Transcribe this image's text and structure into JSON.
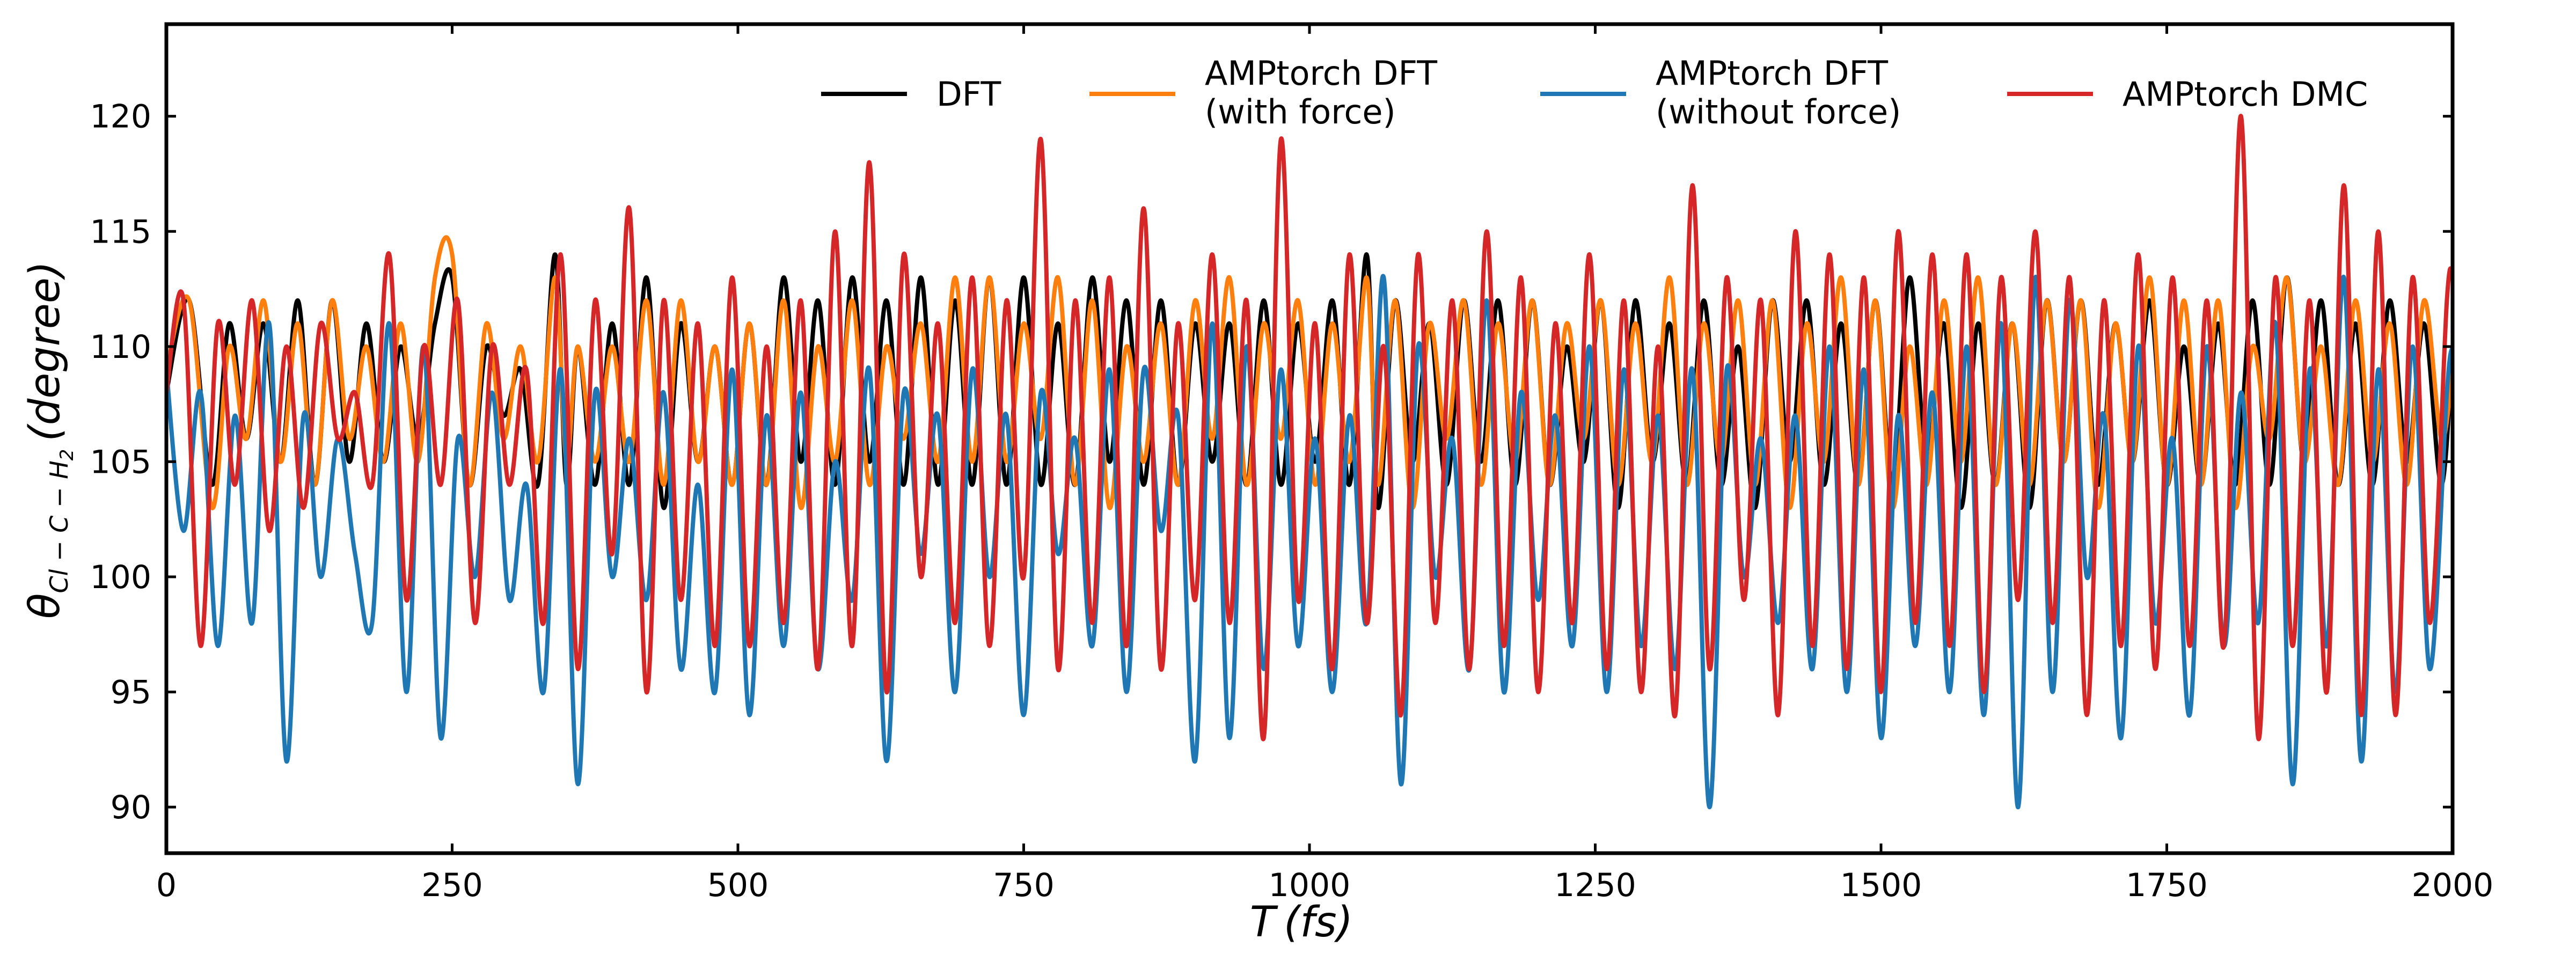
{
  "chart_data": {
    "type": "line",
    "xlabel": "T (fs)",
    "ylabel_main": "θ",
    "ylabel_sub": "Cl − C − H",
    "ylabel_sub2": "2",
    "ylabel_unit": "(degree)",
    "xlim": [
      0,
      2000
    ],
    "ylim": [
      88,
      124
    ],
    "xticks": [
      0,
      250,
      500,
      750,
      1000,
      1250,
      1500,
      1750,
      2000
    ],
    "yticks": [
      90,
      95,
      100,
      105,
      110,
      115,
      120
    ],
    "grid": false,
    "legend_position": "top",
    "series": [
      {
        "name_line1": "DFT",
        "name_line2": "",
        "color": "#000000",
        "x": [
          0,
          20,
          40,
          55,
          70,
          85,
          100,
          115,
          130,
          145,
          160,
          175,
          190,
          205,
          220,
          235,
          250,
          265,
          280,
          295,
          310,
          325,
          340,
          350,
          360,
          375,
          390,
          405,
          420,
          435,
          450,
          465,
          480,
          495,
          510,
          525,
          540,
          555,
          570,
          585,
          600,
          615,
          630,
          645,
          660,
          675,
          690,
          705,
          720,
          735,
          750,
          765,
          780,
          795,
          810,
          825,
          840,
          855,
          870,
          885,
          900,
          915,
          930,
          945,
          960,
          975,
          990,
          1005,
          1020,
          1035,
          1050,
          1060,
          1075,
          1090,
          1105,
          1120,
          1135,
          1150,
          1165,
          1180,
          1195,
          1210,
          1225,
          1240,
          1255,
          1270,
          1285,
          1300,
          1315,
          1330,
          1345,
          1360,
          1375,
          1390,
          1405,
          1420,
          1435,
          1450,
          1465,
          1480,
          1495,
          1510,
          1525,
          1540,
          1555,
          1570,
          1585,
          1600,
          1615,
          1630,
          1645,
          1660,
          1675,
          1690,
          1705,
          1720,
          1735,
          1750,
          1765,
          1780,
          1795,
          1810,
          1825,
          1840,
          1855,
          1870,
          1885,
          1900,
          1915,
          1930,
          1945,
          1960,
          1975,
          1990,
          2000
        ],
        "y": [
          108,
          112,
          104,
          111,
          106,
          111,
          105,
          112,
          104,
          112,
          105,
          111,
          105,
          110,
          106,
          111,
          113,
          104,
          110,
          107,
          109,
          104,
          114,
          104,
          110,
          104,
          111,
          104,
          113,
          103,
          111,
          105,
          110,
          104,
          111,
          104,
          113,
          105,
          112,
          104,
          113,
          105,
          112,
          104,
          113,
          104,
          112,
          104,
          113,
          104,
          113,
          104,
          111,
          104,
          113,
          105,
          112,
          104,
          112,
          104,
          111,
          105,
          111,
          104,
          112,
          104,
          111,
          105,
          112,
          104,
          114,
          103,
          112,
          105,
          111,
          104,
          112,
          105,
          112,
          104,
          112,
          104,
          110,
          105,
          112,
          103,
          112,
          105,
          111,
          104,
          112,
          104,
          110,
          103,
          112,
          105,
          112,
          104,
          111,
          104,
          112,
          104,
          113,
          105,
          111,
          103,
          111,
          104,
          111,
          103,
          112,
          105,
          112,
          104,
          111,
          105,
          112,
          104,
          110,
          104,
          111,
          104,
          112,
          104,
          113,
          105,
          112,
          104,
          111,
          104,
          112,
          105,
          111,
          104,
          110
        ]
      },
      {
        "name_line1": "AMPtorch DFT",
        "name_line2": "(with force)",
        "color": "#ff7f0e",
        "x": [
          0,
          20,
          40,
          55,
          70,
          85,
          100,
          115,
          130,
          145,
          160,
          175,
          190,
          205,
          220,
          235,
          250,
          265,
          280,
          295,
          310,
          325,
          340,
          350,
          360,
          375,
          390,
          405,
          420,
          435,
          450,
          465,
          480,
          495,
          510,
          525,
          540,
          555,
          570,
          585,
          600,
          615,
          630,
          645,
          660,
          675,
          690,
          705,
          720,
          735,
          750,
          765,
          780,
          795,
          810,
          825,
          840,
          855,
          870,
          885,
          900,
          915,
          930,
          945,
          960,
          975,
          990,
          1005,
          1020,
          1035,
          1050,
          1060,
          1075,
          1090,
          1105,
          1120,
          1135,
          1150,
          1165,
          1180,
          1195,
          1210,
          1225,
          1240,
          1255,
          1270,
          1285,
          1300,
          1315,
          1330,
          1345,
          1360,
          1375,
          1390,
          1405,
          1420,
          1435,
          1450,
          1465,
          1480,
          1495,
          1510,
          1525,
          1540,
          1555,
          1570,
          1585,
          1600,
          1615,
          1630,
          1645,
          1660,
          1675,
          1690,
          1705,
          1720,
          1735,
          1750,
          1765,
          1780,
          1795,
          1810,
          1825,
          1840,
          1855,
          1870,
          1885,
          1900,
          1915,
          1930,
          1945,
          1960,
          1975,
          1990,
          2000
        ],
        "y": [
          109,
          112,
          103,
          110,
          106,
          112,
          105,
          111,
          104,
          112,
          106,
          110,
          105,
          111,
          105,
          113,
          114,
          104,
          111,
          106,
          110,
          105,
          113,
          105,
          110,
          105,
          110,
          105,
          112,
          104,
          112,
          105,
          110,
          104,
          111,
          104,
          112,
          103,
          110,
          105,
          112,
          104,
          110,
          106,
          111,
          105,
          113,
          105,
          113,
          105,
          111,
          106,
          113,
          104,
          112,
          103,
          110,
          105,
          111,
          104,
          112,
          106,
          113,
          104,
          111,
          106,
          112,
          104,
          111,
          105,
          113,
          104,
          112,
          103,
          111,
          106,
          112,
          104,
          111,
          105,
          112,
          104,
          111,
          106,
          112,
          104,
          111,
          105,
          113,
          104,
          111,
          105,
          112,
          104,
          112,
          103,
          111,
          105,
          113,
          104,
          112,
          103,
          110,
          104,
          112,
          105,
          113,
          104,
          111,
          104,
          112,
          105,
          112,
          103,
          111,
          105,
          113,
          104,
          112,
          104,
          112,
          103,
          110,
          106,
          113,
          105,
          110,
          104,
          112,
          105,
          111,
          104,
          112,
          106,
          109
        ]
      },
      {
        "name_line1": "AMPtorch DFT",
        "name_line2": "(without force)",
        "color": "#1f77b4",
        "x": [
          0,
          15,
          30,
          45,
          60,
          75,
          90,
          105,
          120,
          135,
          150,
          165,
          180,
          195,
          210,
          225,
          240,
          255,
          270,
          285,
          300,
          315,
          330,
          345,
          360,
          375,
          390,
          405,
          420,
          435,
          450,
          465,
          480,
          495,
          510,
          525,
          540,
          555,
          570,
          585,
          600,
          615,
          630,
          645,
          660,
          675,
          690,
          705,
          720,
          735,
          750,
          765,
          780,
          795,
          810,
          825,
          840,
          855,
          870,
          885,
          900,
          915,
          930,
          945,
          960,
          975,
          990,
          1005,
          1020,
          1035,
          1050,
          1065,
          1080,
          1095,
          1110,
          1125,
          1140,
          1155,
          1170,
          1185,
          1200,
          1215,
          1230,
          1245,
          1260,
          1275,
          1290,
          1305,
          1320,
          1335,
          1350,
          1365,
          1380,
          1395,
          1410,
          1425,
          1440,
          1455,
          1470,
          1485,
          1500,
          1515,
          1530,
          1545,
          1560,
          1575,
          1590,
          1605,
          1620,
          1635,
          1650,
          1665,
          1680,
          1695,
          1710,
          1725,
          1740,
          1755,
          1770,
          1785,
          1800,
          1815,
          1830,
          1845,
          1860,
          1875,
          1890,
          1905,
          1920,
          1935,
          1950,
          1965,
          1980,
          1995,
          2000
        ],
        "y": [
          109,
          102,
          108,
          97,
          107,
          98,
          111,
          92,
          107,
          100,
          106,
          101,
          98,
          111,
          95,
          110,
          93,
          106,
          100,
          108,
          99,
          104,
          95,
          109,
          91,
          108,
          100,
          106,
          99,
          108,
          96,
          104,
          95,
          109,
          94,
          107,
          97,
          108,
          96,
          105,
          99,
          109,
          92,
          108,
          101,
          107,
          95,
          109,
          100,
          107,
          94,
          108,
          101,
          106,
          97,
          109,
          95,
          109,
          102,
          107,
          92,
          111,
          93,
          110,
          96,
          109,
          97,
          106,
          95,
          107,
          98,
          113,
          91,
          110,
          100,
          106,
          96,
          112,
          95,
          108,
          99,
          107,
          97,
          110,
          95,
          109,
          97,
          107,
          96,
          109,
          90,
          109,
          100,
          106,
          98,
          107,
          96,
          110,
          95,
          109,
          93,
          107,
          97,
          108,
          95,
          110,
          94,
          111,
          90,
          113,
          95,
          112,
          100,
          107,
          93,
          110,
          98,
          106,
          94,
          110,
          97,
          108,
          98,
          111,
          91,
          109,
          97,
          113,
          92,
          109,
          95,
          110,
          96,
          108,
          110
        ]
      },
      {
        "name_line1": "AMPtorch DMC",
        "name_line2": "",
        "color": "#d62728",
        "x": [
          0,
          15,
          30,
          45,
          60,
          75,
          90,
          105,
          120,
          135,
          150,
          165,
          180,
          195,
          210,
          225,
          240,
          255,
          270,
          285,
          300,
          315,
          330,
          345,
          360,
          375,
          390,
          405,
          420,
          435,
          450,
          465,
          480,
          495,
          510,
          525,
          540,
          555,
          570,
          585,
          600,
          615,
          630,
          645,
          660,
          675,
          690,
          705,
          720,
          735,
          750,
          765,
          780,
          795,
          810,
          825,
          840,
          855,
          870,
          885,
          900,
          915,
          930,
          945,
          960,
          975,
          990,
          1005,
          1020,
          1035,
          1050,
          1065,
          1080,
          1095,
          1110,
          1125,
          1140,
          1155,
          1170,
          1185,
          1200,
          1215,
          1230,
          1245,
          1260,
          1275,
          1290,
          1305,
          1320,
          1335,
          1350,
          1365,
          1380,
          1395,
          1410,
          1425,
          1440,
          1455,
          1470,
          1485,
          1500,
          1515,
          1530,
          1545,
          1560,
          1575,
          1590,
          1605,
          1620,
          1635,
          1650,
          1665,
          1680,
          1695,
          1710,
          1725,
          1740,
          1755,
          1770,
          1785,
          1800,
          1815,
          1830,
          1845,
          1860,
          1875,
          1890,
          1905,
          1920,
          1935,
          1950,
          1965,
          1980,
          1995,
          2000
        ],
        "y": [
          108,
          112,
          97,
          111,
          104,
          112,
          102,
          110,
          103,
          111,
          106,
          108,
          104,
          114,
          99,
          110,
          104,
          112,
          98,
          110,
          104,
          109,
          98,
          114,
          96,
          112,
          101,
          116,
          95,
          112,
          99,
          111,
          97,
          113,
          97,
          110,
          98,
          112,
          96,
          115,
          97,
          118,
          95,
          114,
          100,
          111,
          98,
          113,
          97,
          112,
          100,
          119,
          96,
          112,
          98,
          113,
          97,
          116,
          96,
          111,
          99,
          114,
          98,
          112,
          93,
          119,
          99,
          111,
          96,
          114,
          98,
          110,
          94,
          114,
          98,
          112,
          96,
          115,
          97,
          113,
          95,
          111,
          98,
          114,
          96,
          112,
          95,
          110,
          94,
          117,
          96,
          113,
          99,
          112,
          94,
          115,
          97,
          114,
          96,
          113,
          95,
          115,
          98,
          114,
          97,
          114,
          95,
          113,
          99,
          115,
          98,
          113,
          94,
          112,
          97,
          114,
          96,
          113,
          97,
          112,
          97,
          120,
          93,
          113,
          97,
          112,
          95,
          117,
          94,
          115,
          94,
          113,
          98,
          112,
          113
        ]
      }
    ]
  }
}
